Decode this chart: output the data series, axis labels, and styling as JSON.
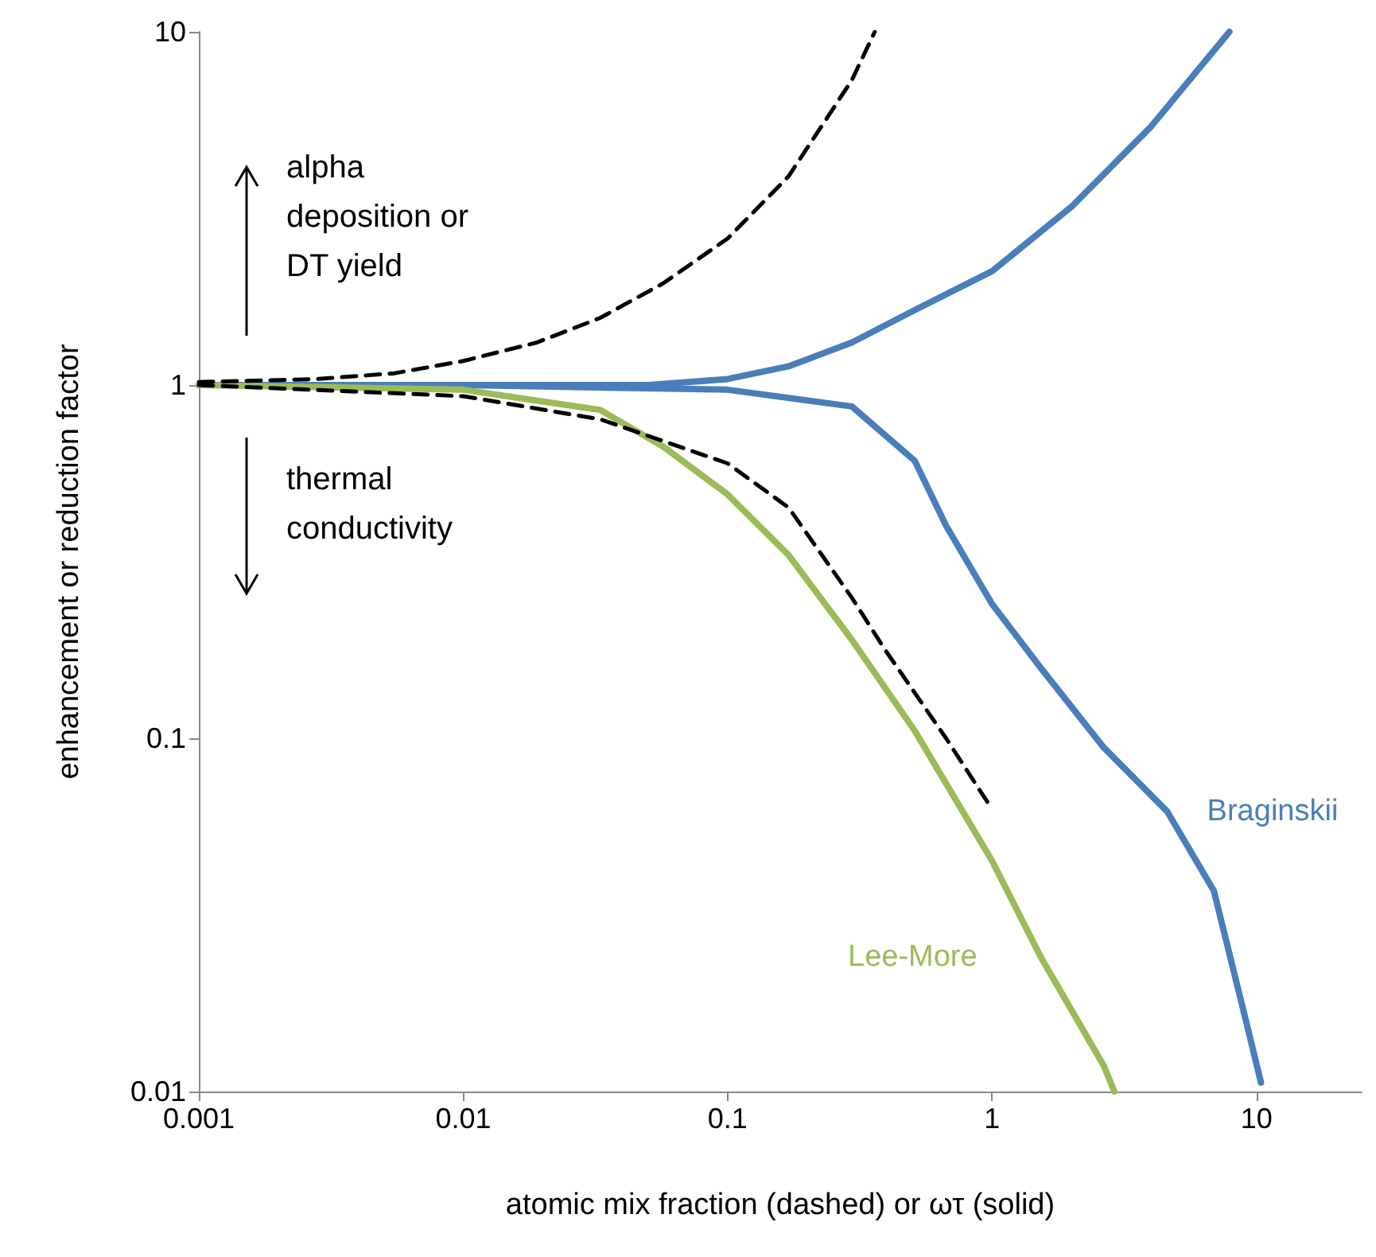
{
  "chart_data": {
    "type": "line",
    "xlabel": "atomic mix fraction (dashed) or ωτ (solid)",
    "ylabel": "enhancement or reduction factor",
    "log": "xy",
    "xlim": [
      0.001,
      25
    ],
    "ylim": [
      0.01,
      10
    ],
    "xticks": [
      0.001,
      0.01,
      0.1,
      1,
      10
    ],
    "yticks": [
      0.01,
      0.1,
      1,
      10
    ],
    "grid": false,
    "legend": false,
    "marker": "none",
    "annotations": [
      "alpha deposition or DT yield",
      "thermal conductivity"
    ],
    "series": [
      {
        "color": "#000000",
        "line_style": "dashed",
        "x": [
          0.001,
          0.0028,
          0.0055,
          0.01,
          0.019,
          0.033,
          0.057,
          0.1,
          0.17,
          0.295,
          0.36
        ],
        "values": [
          1.02,
          1.04,
          1.08,
          1.17,
          1.32,
          1.55,
          1.94,
          2.6,
          3.9,
          7.3,
          10
        ]
      },
      {
        "color": "#000000",
        "line_style": "dashed",
        "x": [
          0.001,
          0.01,
          0.033,
          0.1,
          0.17,
          0.295,
          0.39,
          0.67,
          1
        ],
        "values": [
          1,
          0.93,
          0.8,
          0.6,
          0.45,
          0.25,
          0.18,
          0.1,
          0.063
        ]
      },
      {
        "color": "#4a7ebb",
        "line_style": "solid",
        "x": [
          0.001,
          0.01,
          0.05,
          0.1,
          0.17,
          0.295,
          0.51,
          1,
          2,
          4,
          7.9
        ],
        "values": [
          1,
          1,
          1,
          1.04,
          1.13,
          1.32,
          1.63,
          2.1,
          3.2,
          5.4,
          10
        ]
      },
      {
        "name": "Braginskii",
        "color": "#4a7ebb",
        "line_style": "solid",
        "x": [
          0.001,
          0.01,
          0.1,
          0.295,
          0.51,
          0.67,
          1,
          1.53,
          2.65,
          4.6,
          6.9,
          9.1,
          10.4
        ],
        "values": [
          1,
          1,
          0.97,
          0.87,
          0.61,
          0.4,
          0.24,
          0.158,
          0.094,
          0.062,
          0.037,
          0.016,
          0.0106
        ]
      },
      {
        "name": "Lee-More",
        "color": "#9bbb59",
        "line_style": "solid",
        "x": [
          0.001,
          0.01,
          0.033,
          0.057,
          0.1,
          0.17,
          0.295,
          0.51,
          1,
          1.53,
          2.65,
          2.9
        ],
        "values": [
          1,
          0.97,
          0.85,
          0.67,
          0.49,
          0.33,
          0.19,
          0.105,
          0.045,
          0.024,
          0.0118,
          0.01
        ]
      }
    ]
  }
}
